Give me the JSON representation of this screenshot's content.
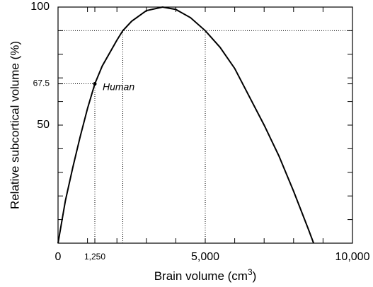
{
  "chart_data": {
    "type": "line",
    "xlabel_parts": [
      "Brain volume (cm",
      "3",
      ")"
    ],
    "ylabel": "Relative subcortical volume (%)",
    "x": [
      0,
      250,
      500,
      750,
      1000,
      1250,
      1500,
      2000,
      2200,
      2500,
      3000,
      3550,
      4000,
      4500,
      5000,
      5500,
      6000,
      6500,
      7000,
      7500,
      8000,
      8500,
      8680
    ],
    "series": [
      {
        "color": "#000000",
        "values": [
          0,
          18,
          32,
          45,
          57,
          67.5,
          75,
          86,
          90,
          94,
          98.5,
          100,
          99,
          95.5,
          90,
          83,
          74,
          62,
          50,
          37,
          22,
          6,
          0
        ]
      }
    ],
    "xlim": [
      0,
      10000
    ],
    "ylim": [
      0,
      100
    ],
    "xticks": [
      0,
      {
        "value": 1250,
        "label": "1,250"
      },
      {
        "value": 5000,
        "label": "5,000"
      },
      {
        "value": 10000,
        "label": "10,000"
      }
    ],
    "yticks": [
      50,
      67.5,
      100
    ],
    "minor_xticks": [
      1000,
      2000,
      3000,
      4000,
      6000,
      7000,
      8000,
      9000
    ],
    "minor_yticks": [
      10,
      20,
      30,
      40,
      60,
      70,
      80,
      90
    ],
    "annotation": {
      "text": "Human",
      "x": 1250,
      "y": 67.5
    },
    "vlines": [
      {
        "x": 1250,
        "y": 67.5
      },
      {
        "x": 2200,
        "y": 90
      },
      {
        "x": 5000,
        "y": 90
      }
    ],
    "hlines": [
      {
        "y": 67.5,
        "x": 1250
      },
      {
        "y": 90
      }
    ]
  }
}
